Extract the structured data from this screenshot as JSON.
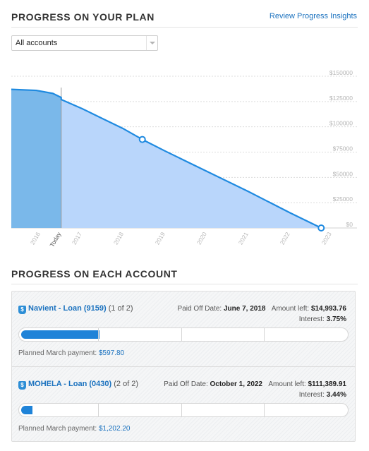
{
  "header": {
    "title": "PROGRESS ON YOUR PLAN",
    "insights_link": "Review Progress Insights"
  },
  "account_select": {
    "selected": "All accounts"
  },
  "chart_data": {
    "type": "area",
    "x_ticks": [
      "2016",
      "Today",
      "2017",
      "2018",
      "2019",
      "2020",
      "2021",
      "2022",
      "2023"
    ],
    "y_ticks": [
      "$150000",
      "$125000",
      "$100000",
      "$75000",
      "$50000",
      "$25000",
      "$0"
    ],
    "ylim": [
      0,
      150000
    ],
    "series": [
      {
        "past_points": [
          [
            2015.3,
            137000
          ],
          [
            2015.9,
            136000
          ],
          [
            2016.3,
            133000
          ],
          [
            2016.5,
            129000
          ]
        ],
        "projected_points": [
          [
            2016.5,
            127000
          ],
          [
            2017.0,
            118000
          ],
          [
            2017.5,
            108000
          ],
          [
            2018.0,
            98000
          ],
          [
            2018.45,
            87500
          ],
          [
            2019.0,
            76000
          ],
          [
            2020.0,
            56000
          ],
          [
            2021.0,
            36000
          ],
          [
            2022.0,
            15000
          ],
          [
            2022.75,
            0
          ]
        ],
        "markers": [
          [
            2018.45,
            87500
          ],
          [
            2022.75,
            0
          ]
        ]
      }
    ],
    "grid": true,
    "colors": {
      "past_fill": "#7ab8ea",
      "projected_fill": "#b9d6fb",
      "line": "#1f8ae0"
    }
  },
  "accounts_section": {
    "title": "PROGRESS ON EACH ACCOUNT",
    "accounts": [
      {
        "icon": "dollar-icon",
        "name": "Navient - Loan (9159)",
        "count": "(1 of 2)",
        "payoff_label": "Paid Off Date:",
        "payoff_date": "June 7, 2018",
        "amount_label": "Amount left:",
        "amount": "$14,993.76",
        "interest_label": "Interest:",
        "interest": "3.75%",
        "progress": 0.24,
        "payment_label": "Planned March payment:",
        "payment": "$597.80"
      },
      {
        "icon": "dollar-icon",
        "name": "MOHELA - Loan (0430)",
        "count": "(2 of 2)",
        "payoff_label": "Paid Off Date:",
        "payoff_date": "October 1, 2022",
        "amount_label": "Amount left:",
        "amount": "$111,389.91",
        "interest_label": "Interest:",
        "interest": "3.44%",
        "progress": 0.035,
        "payment_label": "Planned March payment:",
        "payment": "$1,202.20"
      }
    ]
  }
}
